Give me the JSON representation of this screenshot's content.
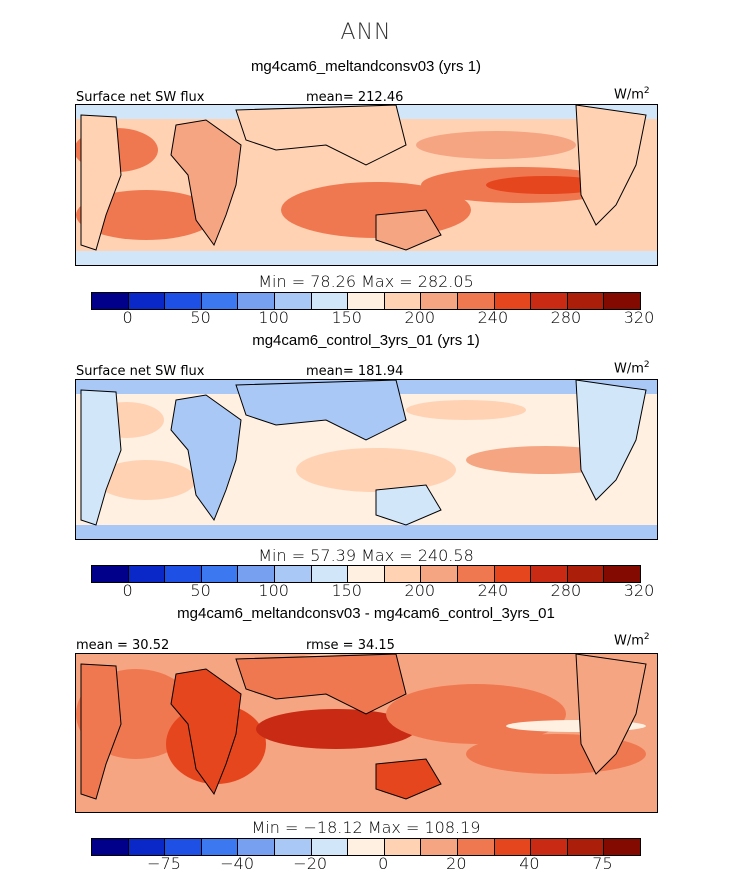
{
  "figure": {
    "title": "ANN"
  },
  "palette": [
    "#00008b",
    "#0a28c8",
    "#1e50e6",
    "#3c78f0",
    "#78a0f0",
    "#aac8f5",
    "#d2e6fa",
    "#fff0e1",
    "#ffd2b4",
    "#f5a582",
    "#f07850",
    "#e6461e",
    "#c82a14",
    "#aa1e0a",
    "#820a00"
  ],
  "chart_data": [
    {
      "type": "heatmap",
      "title": "mg4cam6_meltandconsv03 (yrs 1)",
      "variable_label": "Surface net SW flux",
      "mean_label": "mean= 212.46",
      "units_label": "W/m",
      "units_power": "2",
      "min_max_label": "Min =   78.26  Max =  282.05",
      "stats": {
        "mean": 212.46,
        "min": 78.26,
        "max": 282.05
      },
      "colorbar_ticks": [
        "0",
        "50",
        "100",
        "150",
        "200",
        "240",
        "280",
        "320"
      ],
      "colorbar_tick_positions": [
        1,
        3,
        5,
        7,
        9,
        11,
        13,
        15
      ],
      "data_range": [
        0,
        340
      ]
    },
    {
      "type": "heatmap",
      "title": "mg4cam6_control_3yrs_01 (yrs 1)",
      "variable_label": "Surface net SW flux",
      "mean_label": "mean= 181.94",
      "units_label": "W/m",
      "units_power": "2",
      "min_max_label": "Min =   57.39  Max =  240.58",
      "stats": {
        "mean": 181.94,
        "min": 57.39,
        "max": 240.58
      },
      "colorbar_ticks": [
        "0",
        "50",
        "100",
        "150",
        "200",
        "240",
        "280",
        "320"
      ],
      "colorbar_tick_positions": [
        1,
        3,
        5,
        7,
        9,
        11,
        13,
        15
      ],
      "data_range": [
        0,
        340
      ]
    },
    {
      "type": "heatmap",
      "title": "mg4cam6_meltandconsv03 - mg4cam6_control_3yrs_01",
      "variable_label": "mean =  30.52",
      "mean_label": "rmse =  34.15",
      "units_label": "W/m",
      "units_power": "2",
      "min_max_label": "Min = −18.12  Max =  108.19",
      "stats": {
        "mean": 30.52,
        "rmse": 34.15,
        "min": -18.12,
        "max": 108.19
      },
      "colorbar_ticks": [
        "−75",
        "−40",
        "−20",
        "0",
        "20",
        "40",
        "75"
      ],
      "colorbar_tick_positions": [
        2,
        4,
        6,
        8,
        10,
        12,
        14
      ],
      "data_range": [
        -100,
        100
      ]
    }
  ]
}
